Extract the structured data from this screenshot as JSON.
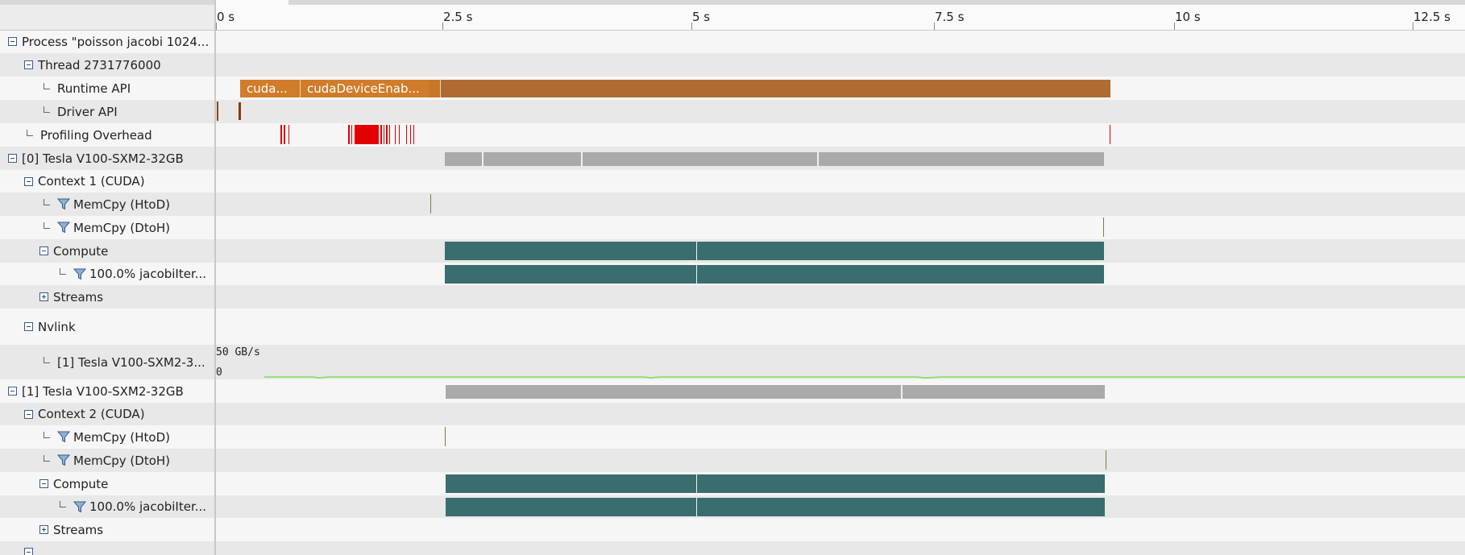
{
  "ruler": {
    "ticks": [
      "0 s",
      "2.5 s",
      "5 s",
      "7.5 s",
      "10 s",
      "12.5 s"
    ]
  },
  "tree": {
    "process": "Process \"poisson jacobi 1024...",
    "thread": "Thread 2731776000",
    "runtime_api": "Runtime API",
    "driver_api": "Driver API",
    "profiling_overhead": "Profiling Overhead",
    "gpu0": "[0] Tesla V100-SXM2-32GB",
    "context1": "Context 1 (CUDA)",
    "memcpy_htod": "MemCpy (HtoD)",
    "memcpy_dtoh": "MemCpy (DtoH)",
    "compute": "Compute",
    "kernel": "100.0% jacobiIter...",
    "streams": "Streams",
    "nvlink": "Nvlink",
    "nvlink_peer": "[1] Tesla V100-SXM2-3...",
    "gpu1": "[1] Tesla V100-SXM2-32GB",
    "context2": "Context 2 (CUDA)",
    "memcpy_htod2": "MemCpy (HtoD)",
    "memcpy_dtoh2": "MemCpy (DtoH)",
    "compute2": "Compute",
    "kernel2": "100.0% jacobiIter...",
    "streams2": "Streams"
  },
  "timeline": {
    "runtime_call1": "cuda...",
    "runtime_call2": "cudaDeviceEnab...",
    "nvlink_max": "50 GB/s",
    "nvlink_min": "0"
  },
  "colors": {
    "runtime": "#d07c2a",
    "overhead": "#e00000",
    "kernel": "#3a6d6d",
    "gpu_usage": "#aaaaaa",
    "nvlink_line": "#7fdc5a"
  }
}
